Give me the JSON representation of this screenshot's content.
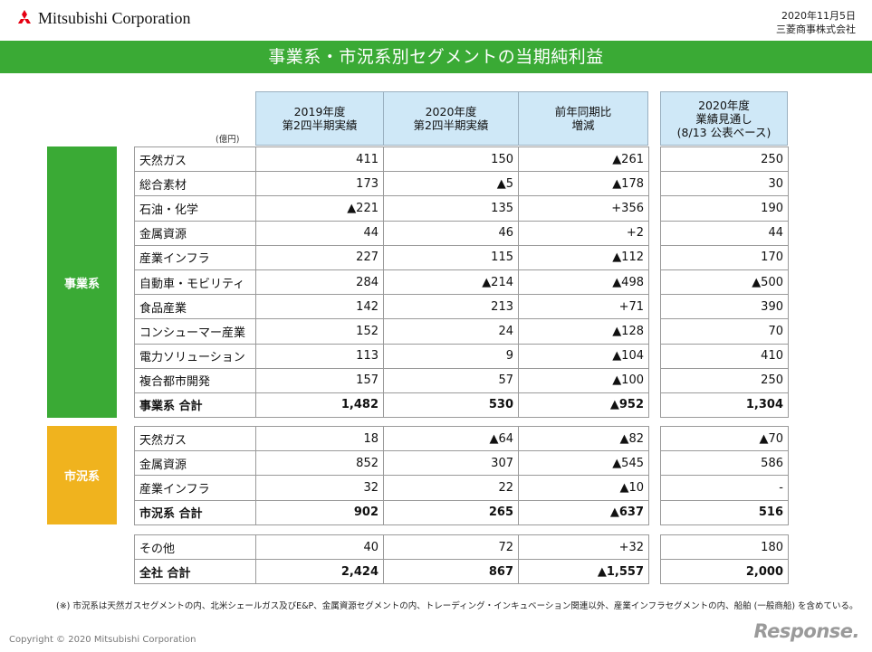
{
  "header": {
    "company": "Mitsubishi Corporation",
    "date": "2020年11月5日",
    "issuer": "三菱商事株式会社"
  },
  "title": "事業系・市況系別セグメントの当期純利益",
  "unit": "(億円)",
  "columns": [
    {
      "line1": "2019年度",
      "line2": "第2四半期実績"
    },
    {
      "line1": "2020年度",
      "line2": "第2四半期実績"
    },
    {
      "line1": "前年同期比",
      "line2": "増減"
    },
    {
      "line1": "2020年度",
      "line2": "業績見通し",
      "line3": "(8/13 公表ベース)"
    }
  ],
  "groups": [
    {
      "category": "事業系",
      "color": "#3aaa35",
      "rows": [
        {
          "label": "天然ガス",
          "values": [
            "411",
            "150",
            "▲261",
            "250"
          ]
        },
        {
          "label": "総合素材",
          "values": [
            "173",
            "▲5",
            "▲178",
            "30"
          ]
        },
        {
          "label": "石油・化学",
          "values": [
            "▲221",
            "135",
            "+356",
            "190"
          ]
        },
        {
          "label": "金属資源",
          "values": [
            "44",
            "46",
            "+2",
            "44"
          ]
        },
        {
          "label": "産業インフラ",
          "values": [
            "227",
            "115",
            "▲112",
            "170"
          ]
        },
        {
          "label": "自動車・モビリティ",
          "values": [
            "284",
            "▲214",
            "▲498",
            "▲500"
          ]
        },
        {
          "label": "食品産業",
          "values": [
            "142",
            "213",
            "+71",
            "390"
          ]
        },
        {
          "label": "コンシューマー産業",
          "values": [
            "152",
            "24",
            "▲128",
            "70"
          ]
        },
        {
          "label": "電力ソリューション",
          "values": [
            "113",
            "9",
            "▲104",
            "410"
          ]
        },
        {
          "label": "複合都市開発",
          "values": [
            "157",
            "57",
            "▲100",
            "250"
          ]
        },
        {
          "label": "事業系 合計",
          "values": [
            "1,482",
            "530",
            "▲952",
            "1,304"
          ],
          "total": true
        }
      ]
    },
    {
      "category": "市況系",
      "color": "#f0b31e",
      "rows": [
        {
          "label": "天然ガス",
          "values": [
            "18",
            "▲64",
            "▲82",
            "▲70"
          ]
        },
        {
          "label": "金属資源",
          "values": [
            "852",
            "307",
            "▲545",
            "586"
          ]
        },
        {
          "label": "産業インフラ",
          "values": [
            "32",
            "22",
            "▲10",
            "-"
          ]
        },
        {
          "label": "市況系 合計",
          "values": [
            "902",
            "265",
            "▲637",
            "516"
          ],
          "total": true
        }
      ]
    },
    {
      "category": "",
      "rows": [
        {
          "label": "その他",
          "values": [
            "40",
            "72",
            "+32",
            "180"
          ]
        },
        {
          "label": "全社 合計",
          "values": [
            "2,424",
            "867",
            "▲1,557",
            "2,000"
          ],
          "total": true
        }
      ]
    }
  ],
  "footnote": "(※) 市況系は天然ガスセグメントの内、北米シェールガス及びE&P、金属資源セグメントの内、トレーディング・インキュベーション関連以外、産業インフラセグメントの内、船舶 (一般商船) を含めている。",
  "copyright": "Copyright © 2020 Mitsubishi Corporation",
  "watermark": "Response."
}
